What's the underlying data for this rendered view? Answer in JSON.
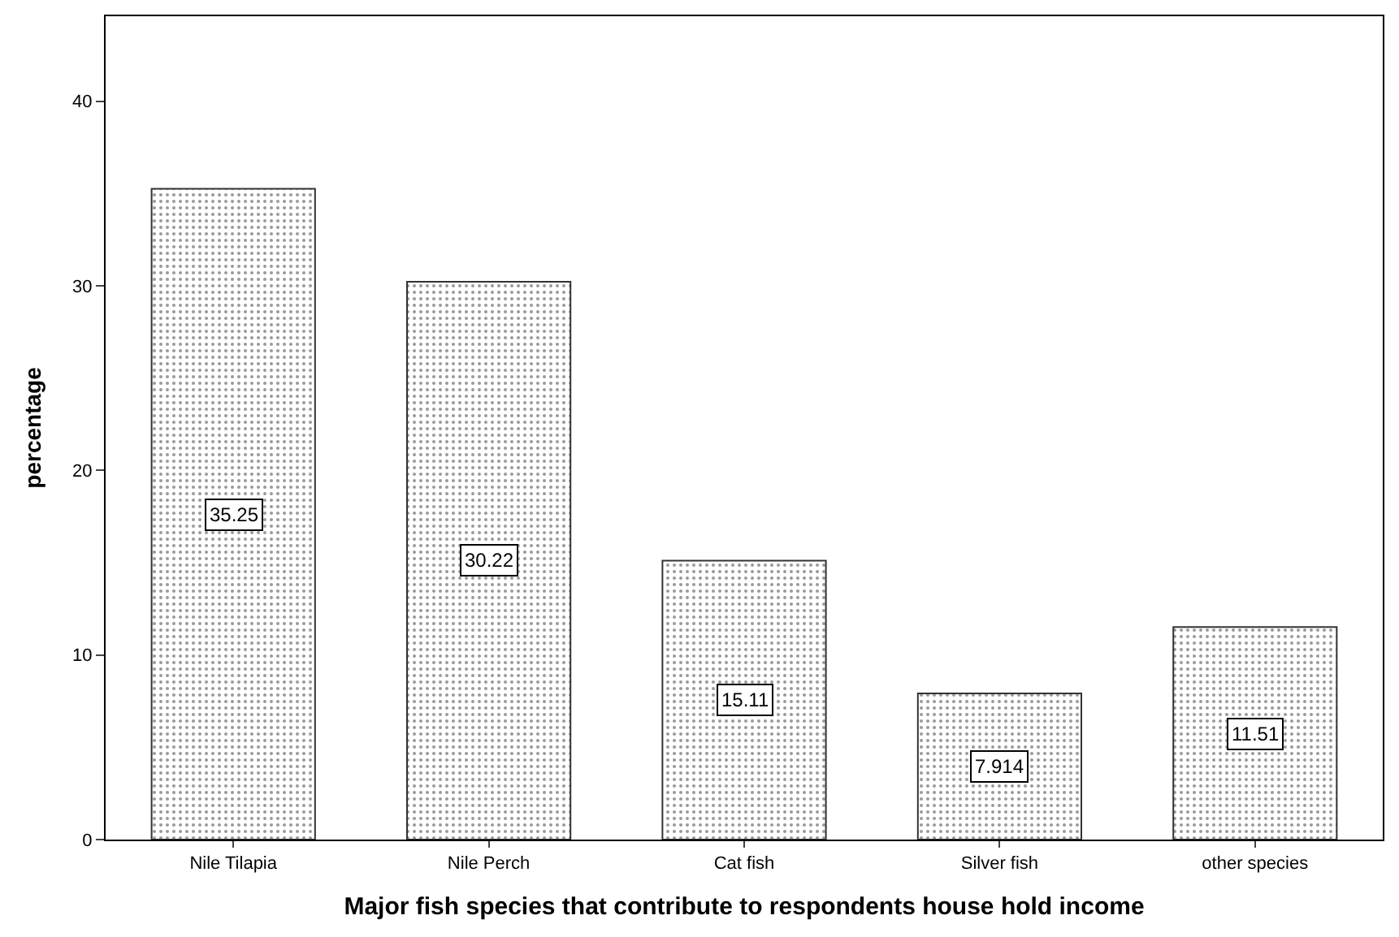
{
  "chart_data": {
    "type": "bar",
    "xlabel": "Major fish species that contribute to respondents house hold income",
    "ylabel": "percentage",
    "categories": [
      "Nile Tilapia",
      "Nile Perch",
      "Cat fish",
      "Silver fish",
      "other species"
    ],
    "values": [
      35.25,
      30.22,
      15.11,
      7.914,
      11.51
    ],
    "color": "#333333",
    "ylim": [
      0,
      44.6
    ],
    "yticks": [
      0,
      10,
      20,
      30,
      40
    ],
    "legend": false,
    "data_labels": true
  }
}
